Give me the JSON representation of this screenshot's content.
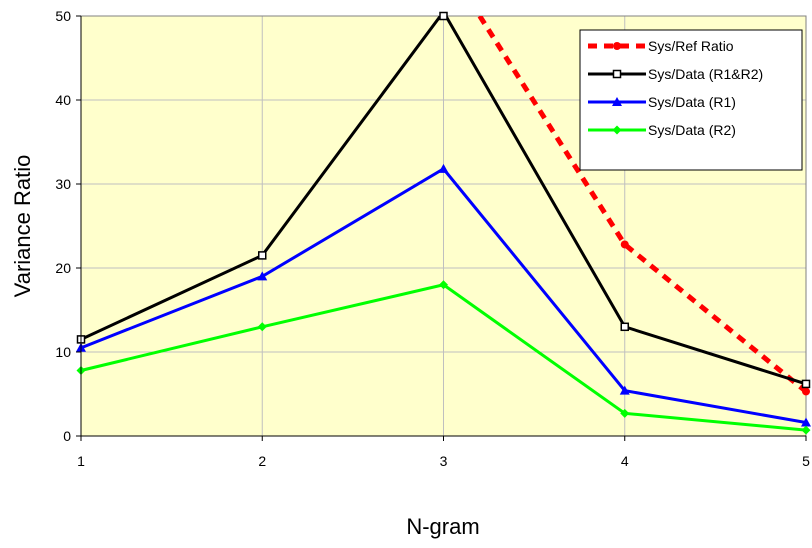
{
  "chart_data": {
    "type": "line",
    "title": "",
    "xlabel": "N-gram",
    "ylabel": "Variance Ratio",
    "x": [
      1,
      2,
      3,
      4,
      5
    ],
    "xlim": [
      1,
      5
    ],
    "ylim": [
      0,
      50
    ],
    "xticks": [
      "1",
      "2",
      "3",
      "4",
      "5"
    ],
    "yticks": [
      "0",
      "10",
      "20",
      "30",
      "40",
      "50"
    ],
    "grid": true,
    "plot_background": "#FFFFCC",
    "legend_position": "top-right",
    "series": [
      {
        "name": "Sys/Ref Ratio",
        "color": "#FF0000",
        "style": "dashed",
        "marker": "circle",
        "x": [
          3.2,
          4,
          5
        ],
        "values": [
          50,
          22.8,
          5.3
        ]
      },
      {
        "name": "Sys/Data (R1&R2)",
        "color": "#000000",
        "style": "solid",
        "marker": "square",
        "x": [
          1,
          2,
          3,
          4,
          5
        ],
        "values": [
          11.5,
          21.5,
          50.5,
          13,
          6.2
        ]
      },
      {
        "name": "Sys/Data (R1)",
        "color": "#0000FF",
        "style": "solid",
        "marker": "triangle",
        "x": [
          1,
          2,
          3,
          4,
          5
        ],
        "values": [
          10.5,
          19,
          31.8,
          5.4,
          1.6
        ]
      },
      {
        "name": "Sys/Data (R2)",
        "color": "#00FF00",
        "style": "solid",
        "marker": "diamond",
        "x": [
          1,
          2,
          3,
          4,
          5
        ],
        "values": [
          7.8,
          13,
          18,
          2.7,
          0.7
        ]
      }
    ]
  }
}
